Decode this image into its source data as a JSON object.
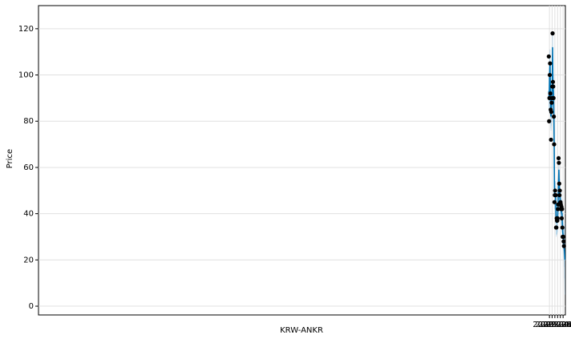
{
  "chart_data": {
    "type": "line",
    "x_label": "KRW-ANKR",
    "y_label": "Price",
    "grid": true,
    "xlim": [
      1991.0,
      2023.054
    ],
    "ylim": [
      -3.8,
      130
    ],
    "xticks": [
      {
        "value": 2022.085,
        "label": "2022-02"
      },
      {
        "value": 2022.247,
        "label": "2022-04"
      },
      {
        "value": 2022.414,
        "label": "2022-06"
      },
      {
        "value": 2022.581,
        "label": "2022-08"
      },
      {
        "value": 2022.748,
        "label": "2022-10"
      },
      {
        "value": 2022.915,
        "label": "2022-12"
      }
    ],
    "yticks": [
      0,
      20,
      40,
      60,
      80,
      100,
      120
    ],
    "x": [
      2022.045,
      2022.064,
      2022.083,
      2022.103,
      2022.122,
      2022.141,
      2022.16,
      2022.179,
      2022.199,
      2022.218,
      2022.237,
      2022.256,
      2022.275,
      2022.295,
      2022.314,
      2022.333,
      2022.352,
      2022.371,
      2022.391,
      2022.41,
      2022.429,
      2022.448,
      2022.467,
      2022.487,
      2022.506,
      2022.525,
      2022.544,
      2022.563,
      2022.583,
      2022.602,
      2022.621,
      2022.64,
      2022.659,
      2022.679,
      2022.698,
      2022.717,
      2022.736,
      2022.755,
      2022.775,
      2022.794,
      2022.813,
      2022.832,
      2022.851,
      2022.871,
      2022.89,
      2022.909,
      2022.928,
      2022.947,
      2022.967,
      2022.986,
      2023.005,
      2023.024
    ],
    "series": [
      {
        "type": "band",
        "color": "#b7d6ea",
        "lower": [
          87,
          84,
          89,
          97,
          99,
          87,
          77,
          76,
          78,
          80,
          84,
          92,
          106,
          90,
          88,
          86,
          76,
          64,
          42,
          42,
          42,
          42,
          40,
          31,
          30,
          32,
          31,
          32,
          32,
          36,
          43,
          48,
          53,
          46,
          42,
          43,
          39,
          38,
          38,
          37,
          35,
          34,
          34,
          29,
          26,
          25,
          24,
          23,
          21,
          17,
          12,
          5
        ],
        "upper": [
          99,
          96,
          101,
          109,
          111,
          99,
          89,
          88,
          90,
          92,
          96,
          104,
          118,
          102,
          100,
          98,
          88,
          76,
          54,
          54,
          54,
          54,
          52,
          43,
          42,
          44,
          43,
          44,
          44,
          48,
          55,
          60,
          65,
          58,
          54,
          55,
          51,
          50,
          50,
          49,
          47,
          46,
          46,
          41,
          38,
          37,
          36,
          35,
          33,
          33,
          34,
          36
        ]
      },
      {
        "type": "line",
        "color": "#0072b2",
        "values": [
          93,
          90,
          95,
          103,
          105,
          93,
          83,
          82,
          84,
          86,
          90,
          98,
          112,
          96,
          94,
          92,
          82,
          70,
          48,
          48,
          48,
          48,
          46,
          37,
          36,
          38,
          37,
          38,
          38,
          42,
          49,
          54,
          59,
          52,
          48,
          49,
          45,
          44,
          44,
          43,
          41,
          40,
          40,
          35,
          32,
          31,
          30,
          29,
          27,
          25,
          23,
          20
        ]
      },
      {
        "type": "scatter",
        "color": "#000000",
        "values": [
          108,
          80,
          90,
          100,
          105,
          92,
          85,
          72,
          84,
          88,
          90,
          95,
          118,
          97,
          95,
          90,
          82,
          70,
          45,
          48,
          50,
          48,
          48,
          34,
          34,
          38,
          37,
          37,
          38,
          42,
          44,
          64,
          62,
          53,
          48,
          50,
          44,
          45,
          44,
          42,
          43,
          38,
          42,
          34,
          30,
          30,
          30,
          28,
          26,
          null,
          null,
          null
        ]
      }
    ]
  }
}
